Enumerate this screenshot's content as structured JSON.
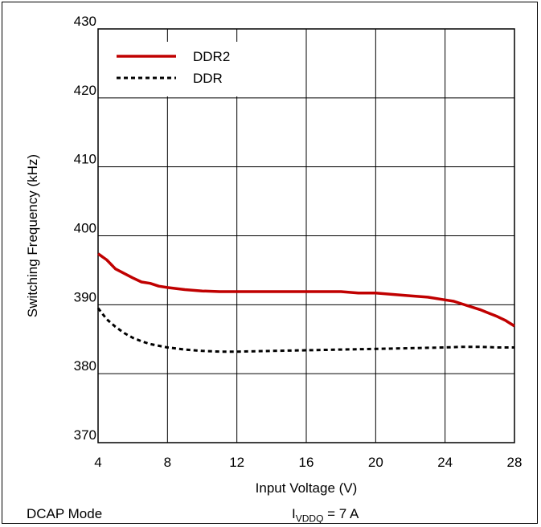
{
  "chart_data": {
    "type": "line",
    "xlabel": "Input Voltage (V)",
    "ylabel": "Switching Frequency (kHz)",
    "xlim": [
      4,
      28
    ],
    "ylim": [
      370,
      430
    ],
    "xticks": [
      "4",
      "8",
      "12",
      "16",
      "20",
      "24",
      "28"
    ],
    "yticks": [
      "370",
      "380",
      "390",
      "400",
      "410",
      "420",
      "430"
    ],
    "grid": true,
    "legend_position": "top-left",
    "series": [
      {
        "name": "DDR2",
        "color": "#c00000",
        "style": "solid",
        "x": [
          4,
          4.5,
          5,
          6,
          6.5,
          7,
          7.5,
          8,
          9,
          10,
          11,
          12,
          14,
          16,
          18,
          19,
          20,
          21,
          22,
          23,
          24,
          24.5,
          25,
          26,
          26.5,
          27,
          27.5,
          28
        ],
        "y": [
          397.4,
          396.5,
          395.2,
          393.9,
          393.3,
          393.1,
          392.7,
          392.5,
          392.2,
          392.0,
          391.9,
          391.9,
          391.9,
          391.9,
          391.9,
          391.7,
          391.7,
          391.5,
          391.3,
          391.1,
          390.7,
          390.5,
          390.1,
          389.3,
          388.8,
          388.3,
          387.7,
          386.9
        ]
      },
      {
        "name": "DDR",
        "color": "#000000",
        "style": "dashed",
        "x": [
          4,
          4.5,
          5,
          5.5,
          6,
          6.5,
          7,
          8,
          9,
          10,
          11,
          12,
          14,
          16,
          18,
          20,
          22,
          24,
          25,
          26,
          27,
          28
        ],
        "y": [
          389.5,
          387.9,
          386.8,
          385.9,
          385.2,
          384.7,
          384.3,
          383.8,
          383.5,
          383.3,
          383.2,
          383.2,
          383.3,
          383.4,
          383.5,
          383.6,
          383.7,
          383.8,
          383.9,
          383.9,
          383.8,
          383.8
        ]
      }
    ]
  },
  "footer": {
    "mode": "DCAP Mode",
    "current_prefix": "I",
    "current_sub": "VDDQ",
    "current_suffix": " = 7 A"
  }
}
